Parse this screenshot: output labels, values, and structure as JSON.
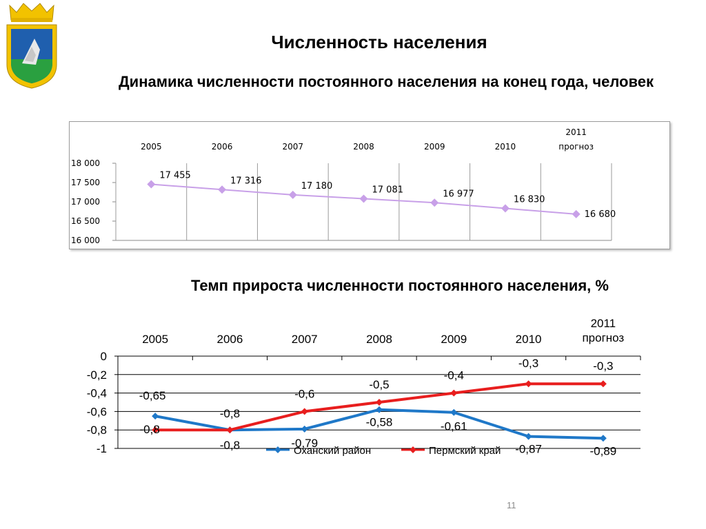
{
  "page": {
    "title": "Численность населения",
    "slide_number": "11"
  },
  "chart_data": [
    {
      "type": "line",
      "title": "Динамика численности постоянного населения на конец года, человек",
      "categories": [
        "2005",
        "2006",
        "2007",
        "2008",
        "2009",
        "2010",
        "2011 прогноз"
      ],
      "category_lines": [
        [
          "2005"
        ],
        [
          "2006"
        ],
        [
          "2007"
        ],
        [
          "2008"
        ],
        [
          "2009"
        ],
        [
          "2010"
        ],
        [
          "2011",
          "прогноз"
        ]
      ],
      "series": [
        {
          "values": [
            17455,
            17316,
            17180,
            17081,
            16977,
            16830,
            16680
          ],
          "color": "#c8a0e8"
        }
      ],
      "data_labels": [
        "17 455",
        "17 316",
        "17 180",
        "17 081",
        "16 977",
        "16 830",
        "16 680"
      ],
      "yticks": [
        16000,
        16500,
        17000,
        17500,
        18000
      ],
      "ytick_labels": [
        "16 000",
        "16 500",
        "17 000",
        "17 500",
        "18 000"
      ],
      "ylim": [
        16000,
        18000
      ],
      "grid": false,
      "xaxis_position": "top"
    },
    {
      "type": "line",
      "title": "Темп прироста численности постоянного населения, %",
      "categories": [
        "2005",
        "2006",
        "2007",
        "2008",
        "2009",
        "2010",
        "2011 прогноз"
      ],
      "category_lines": [
        [
          "2005"
        ],
        [
          "2006"
        ],
        [
          "2007"
        ],
        [
          "2008"
        ],
        [
          "2009"
        ],
        [
          "2010"
        ],
        [
          "2011",
          "прогноз"
        ]
      ],
      "series": [
        {
          "name": "Оханский район",
          "values": [
            -0.65,
            -0.8,
            -0.79,
            -0.58,
            -0.61,
            -0.87,
            -0.89
          ],
          "labels": [
            "-0,65",
            "-0,8",
            "-0,79",
            "-0,58",
            "-0,61",
            "-0,87",
            "-0,89"
          ],
          "color": "#1f78c8"
        },
        {
          "name": "Пермский край",
          "values": [
            -0.8,
            -0.8,
            -0.6,
            -0.5,
            -0.4,
            -0.3,
            -0.3
          ],
          "labels": [
            "-0,8",
            "-0,8",
            "-0,6",
            "-0,5",
            "-0,4",
            "-0,3",
            "-0,3"
          ],
          "color": "#e81e1e"
        }
      ],
      "yticks": [
        0,
        -0.2,
        -0.4,
        -0.6,
        -0.8,
        -1
      ],
      "ytick_labels": [
        "0",
        "-0,2",
        "-0,4",
        "-0,6",
        "-0,8",
        "-1"
      ],
      "ylim": [
        -1,
        0
      ],
      "grid": true,
      "legend": "bottom",
      "xaxis_position": "top"
    }
  ]
}
